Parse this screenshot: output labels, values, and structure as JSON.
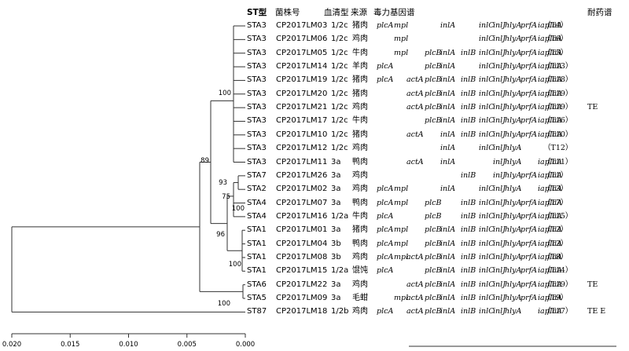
{
  "headers": {
    "st": "ST型",
    "strain": "菌株号",
    "serotype": "血清型",
    "source": "来源",
    "virulence": "毒力基因谱",
    "resistance": "耐药谱"
  },
  "genes": [
    "plcA",
    "mpl",
    "actA",
    "plcB",
    "inlA",
    "inlB",
    "inlC",
    "inlJ",
    "hlyA",
    "prfA",
    "iap",
    "flaA"
  ],
  "rows": [
    {
      "st": "STA3",
      "strain": "CP2017LM03",
      "serotype": "1/2c",
      "source": "猪肉",
      "genes": {
        "plcA": "plcA",
        "mpl": "mpl",
        "inlA": "inlA",
        "inlC": "inlC",
        "inlJ": "inlJ",
        "hlyA": "hlyA",
        "prfA": "prfA",
        "iap": "iap",
        "flaA": "flaA"
      },
      "type": "（T4）",
      "res": ""
    },
    {
      "st": "STA3",
      "strain": "CP2017LM06",
      "serotype": "1/2c",
      "source": "鸡肉",
      "genes": {
        "mpl": "mpl",
        "inlC": "inlC",
        "inlJ": "inlJ",
        "hlyA": "hlyA",
        "prfA": "prfA",
        "iap": "iap",
        "flaA": "flaA"
      },
      "type": "（T6）",
      "res": ""
    },
    {
      "st": "STA3",
      "strain": "CP2017LM05",
      "serotype": "1/2c",
      "source": "牛肉",
      "genes": {
        "mpl": "mpl",
        "plcB": "plcB",
        "inlA": "inlA",
        "inlB": "inlB",
        "inlC": "inlC",
        "inlJ": "inlJ",
        "hlyA": "hlyA",
        "prfA": "prfA",
        "iap": "iap",
        "flaA": "flaA"
      },
      "type": "（T5）",
      "res": ""
    },
    {
      "st": "STA3",
      "strain": "CP2017LM14",
      "serotype": "1/2c",
      "source": "羊肉",
      "genes": {
        "plcA": "plcA",
        "plcB": "plcB",
        "inlA": "inlA",
        "inlC": "inlC",
        "inlJ": "inlJ",
        "hlyA": "hlyA",
        "prfA": "prfA",
        "iap": "iap",
        "flaA": "flaA"
      },
      "type": "（T13）",
      "res": ""
    },
    {
      "st": "STA3",
      "strain": "CP2017LM19",
      "serotype": "1/2c",
      "source": "猪肉",
      "genes": {
        "plcA": "plcA",
        "actA": "actA",
        "plcB": "plcB",
        "inlA": "inlA",
        "inlB": "inlB",
        "inlC": "inlC",
        "inlJ": "inlJ",
        "hlyA": "hlyA",
        "prfA": "prfA",
        "iap": "iap",
        "flaA": "flaA"
      },
      "type": "（T18）",
      "res": ""
    },
    {
      "st": "STA3",
      "strain": "CP2017LM20",
      "serotype": "1/2c",
      "source": "猪肉",
      "genes": {
        "actA": "actA",
        "plcB": "plcB",
        "inlA": "inlA",
        "inlB": "inlB",
        "inlC": "inlC",
        "inlJ": "inlJ",
        "hlyA": "hlyA",
        "prfA": "prfA",
        "iap": "iap",
        "flaA": "flaA"
      },
      "type": "（T19）",
      "res": ""
    },
    {
      "st": "STA3",
      "strain": "CP2017LM21",
      "serotype": "1/2c",
      "source": "鸡肉",
      "genes": {
        "actA": "actA",
        "plcB": "plcB",
        "inlA": "inlA",
        "inlB": "inlB",
        "inlC": "inlC",
        "inlJ": "inlJ",
        "hlyA": "hlyA",
        "prfA": "prfA",
        "iap": "iap",
        "flaA": "flaA"
      },
      "type": "（T19）",
      "res": "TE"
    },
    {
      "st": "STA3",
      "strain": "CP2017LM17",
      "serotype": "1/2c",
      "source": "牛肉",
      "genes": {
        "plcB": "plcB",
        "inlA": "inlA",
        "inlB": "inlB",
        "inlC": "inlC",
        "inlJ": "inlJ",
        "hlyA": "hlyA",
        "prfA": "prfA",
        "iap": "iap",
        "flaA": "flaA"
      },
      "type": "（T16）",
      "res": ""
    },
    {
      "st": "STA3",
      "strain": "CP2017LM10",
      "serotype": "1/2c",
      "source": "猪肉",
      "genes": {
        "actA": "actA",
        "inlA": "inlA",
        "inlB": "inlB",
        "inlC": "inlC",
        "inlJ": "inlJ",
        "hlyA": "hlyA",
        "prfA": "prfA",
        "iap": "iap",
        "flaA": "flaA"
      },
      "type": "（T10）",
      "res": ""
    },
    {
      "st": "STA3",
      "strain": "CP2017LM12",
      "serotype": "1/2c",
      "source": "鸡肉",
      "genes": {
        "inlA": "inlA",
        "inlC": "inlC",
        "inlJ": "inlJ",
        "hlyA": "hlyA"
      },
      "type": "（T12）",
      "res": ""
    },
    {
      "st": "STA3",
      "strain": "CP2017LM11",
      "serotype": "3a",
      "source": "鸭肉",
      "genes": {
        "actA": "actA",
        "inlA": "inlA",
        "inlJ": "inlJ",
        "hlyA": "hlyA",
        "iap": "iap",
        "flaA": "flaA"
      },
      "type": "（T11）",
      "res": ""
    },
    {
      "st": "STA7",
      "strain": "CP2017LM26",
      "serotype": "3a",
      "source": "鸡肉",
      "genes": {
        "inlB": "inlB",
        "inlJ": "inlJ",
        "hlyA": "hlyA",
        "prfA": "prfA",
        "iap": "iap",
        "flaA": "flaA"
      },
      "type": "（T1）",
      "res": ""
    },
    {
      "st": "STA2",
      "strain": "CP2017LM02",
      "serotype": "3a",
      "source": "鸡肉",
      "genes": {
        "plcA": "plcA",
        "mpl": "mpl",
        "inlA": "inlA",
        "inlC": "inlC",
        "inlJ": "inlJ",
        "hlyA": "hlyA",
        "iap": "iap",
        "flaA": "flaA"
      },
      "type": "（T3）",
      "res": ""
    },
    {
      "st": "STA4",
      "strain": "CP2017LM07",
      "serotype": "3a",
      "source": "鸭肉",
      "genes": {
        "plcA": "plcA",
        "mpl": "mpl",
        "plcB": "plcB",
        "inlB": "inlB",
        "inlC": "inlC",
        "inlJ": "inlJ",
        "hlyA": "hlyA",
        "prfA": "prfA",
        "iap": "iap",
        "flaA": "flaA"
      },
      "type": "（T7）",
      "res": ""
    },
    {
      "st": "STA4",
      "strain": "CP2017LM16",
      "serotype": "1/2a",
      "source": "牛肉",
      "genes": {
        "plcA": "plcA",
        "plcB": "plcB",
        "inlB": "inlB",
        "inlC": "inlC",
        "inlJ": "inlJ",
        "hlyA": "hlyA",
        "prfA": "prfA",
        "iap": "iap",
        "flaA": "flaA"
      },
      "type": "（T15）",
      "res": ""
    },
    {
      "st": "STA1",
      "strain": "CP2017LM01",
      "serotype": "3a",
      "source": "猪肉",
      "genes": {
        "plcA": "plcA",
        "mpl": "mpl",
        "plcB": "plcB",
        "inlA": "inlA",
        "inlB": "inlB",
        "inlC": "inlC",
        "inlJ": "inlJ",
        "hlyA": "hlyA",
        "prfA": "prfA",
        "iap": "iap",
        "flaA": "flaA"
      },
      "type": "（T2）",
      "res": ""
    },
    {
      "st": "STA1",
      "strain": "CP2017LM04",
      "serotype": "3b",
      "source": "鸭肉",
      "genes": {
        "plcA": "plcA",
        "mpl": "mpl",
        "plcB": "plcB",
        "inlA": "inlA",
        "inlB": "inlB",
        "inlC": "inlC",
        "inlJ": "inlJ",
        "hlyA": "hlyA",
        "prfA": "prfA",
        "iap": "iap",
        "flaA": "flaA"
      },
      "type": "（T2）",
      "res": ""
    },
    {
      "st": "STA1",
      "strain": "CP2017LM08",
      "serotype": "3b",
      "source": "鸡肉",
      "genes": {
        "plcA": "plcA",
        "mpl": "mpl",
        "actA": "actA",
        "plcB": "plcB",
        "inlA": "inlA",
        "inlB": "inlB",
        "inlC": "inlC",
        "inlJ": "inlJ",
        "hlyA": "hlyA",
        "prfA": "prfA",
        "iap": "iap",
        "flaA": "flaA"
      },
      "type": "（T8）",
      "res": ""
    },
    {
      "st": "STA1",
      "strain": "CP2017LM15",
      "serotype": "1/2a",
      "source": "馄饨",
      "genes": {
        "plcA": "plcA",
        "plcB": "plcB",
        "inlA": "inlA",
        "inlB": "inlB",
        "inlC": "inlC",
        "inlJ": "inlJ",
        "hlyA": "hlyA",
        "prfA": "prfA",
        "iap": "iap",
        "flaA": "flaA"
      },
      "type": "（T14）",
      "res": ""
    },
    {
      "st": "STA6",
      "strain": "CP2017LM22",
      "serotype": "3a",
      "source": "鸡肉",
      "genes": {
        "actA": "actA",
        "plcB": "plcB",
        "inlA": "inlA",
        "inlB": "inlB",
        "inlC": "inlC",
        "inlJ": "inlJ",
        "hlyA": "hlyA",
        "prfA": "prfA",
        "iap": "iap",
        "flaA": "flaA"
      },
      "type": "（T19）",
      "res": "TE"
    },
    {
      "st": "STA5",
      "strain": "CP2017LM09",
      "serotype": "3a",
      "source": "毛蚶",
      "genes": {
        "mpl": "mpl",
        "actA": "actA",
        "plcB": "plcB",
        "inlA": "inlA",
        "inlB": "inlB",
        "inlC": "inlC",
        "inlJ": "inlJ",
        "hlyA": "hlyA",
        "prfA": "prfA",
        "iap": "iap",
        "flaA": "flaA"
      },
      "type": "（T9）",
      "res": ""
    },
    {
      "st": "ST87",
      "strain": "CP2017LM18",
      "serotype": "1/2b",
      "source": "鸡肉",
      "genes": {
        "plcA": "plcA",
        "actA": "actA",
        "plcB": "plcB",
        "inlA": "inlA",
        "inlB": "inlB",
        "inlC": "inlC",
        "inlJ": "inlJ",
        "hlyA": "hlyA",
        "iap": "iap",
        "flaA": "flaA"
      },
      "type": "（T17）",
      "res": "TE E"
    }
  ],
  "bootstrap": [
    "100",
    "89",
    "93",
    "75",
    "100",
    "96",
    "100",
    "100"
  ],
  "scale": {
    "ticks": [
      "0.020",
      "0.015",
      "0.010",
      "0.005",
      "0.000"
    ],
    "values": [
      0.02,
      0.015,
      0.01,
      0.005,
      0.0
    ]
  },
  "colors": {
    "line": "#333333",
    "text": "#000000",
    "background": "#ffffff"
  }
}
